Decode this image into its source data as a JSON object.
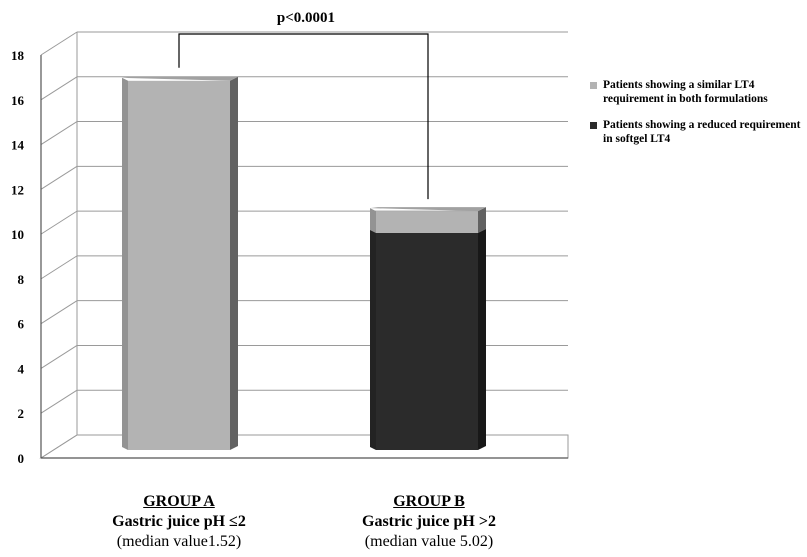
{
  "chart_data": {
    "type": "bar",
    "stacked": true,
    "style": "3d",
    "categories": [
      "GROUP A",
      "GROUP B"
    ],
    "series": [
      {
        "name": "Patients showing a reduced requirement in softgel LT4",
        "values": [
          0,
          10
        ],
        "color": "#2b2b2b"
      },
      {
        "name": "Patients showing a similar LT4 requirement in both formulations",
        "values": [
          17,
          1
        ],
        "color": "#b3b3b3"
      }
    ],
    "ylim": [
      0,
      18
    ],
    "yticks": [
      "0",
      "2",
      "4",
      "6",
      "8",
      "10",
      "12",
      "14",
      "16",
      "18"
    ],
    "grid": true,
    "legend_position": "right",
    "annotation": "p<0.0001"
  },
  "groups": [
    {
      "name": "GROUP A",
      "ph": "Gastric juice pH ≤2",
      "median": "(median value1.52)"
    },
    {
      "name": "GROUP B",
      "ph": "Gastric juice pH >2",
      "median": "(median value 5.02)"
    }
  ],
  "legend": [
    {
      "label": "Patients showing a similar LT4 requirement in both formulations",
      "color": "#b3b3b3"
    },
    {
      "label": "Patients showing a reduced requirement in softgel LT4",
      "color": "#2b2b2b"
    }
  ]
}
